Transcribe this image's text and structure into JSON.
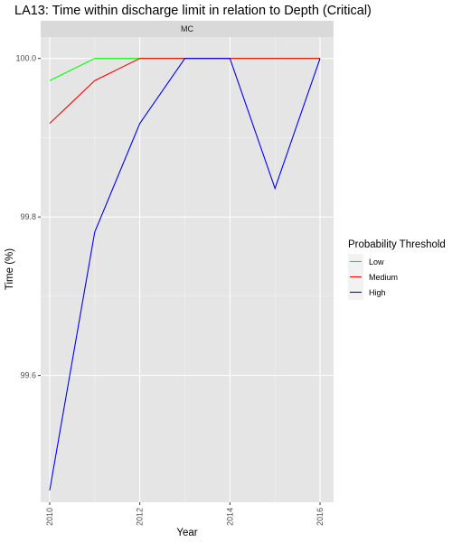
{
  "chart_data": {
    "type": "line",
    "title": "LA13: Time within discharge limit in relation to Depth (Critical)",
    "facet_label": "MC",
    "xlabel": "Year",
    "ylabel": "Time (%)",
    "x": [
      2010,
      2011,
      2012,
      2013,
      2014,
      2015,
      2016
    ],
    "x_ticks": [
      2010,
      2012,
      2014,
      2016
    ],
    "y_ticks": [
      99.6,
      99.8,
      100.0
    ],
    "y_tick_labels": [
      "99.6",
      "99.8",
      "100.0"
    ],
    "xlim": [
      2009.8,
      2016.3
    ],
    "ylim": [
      99.44,
      100.027
    ],
    "grid": true,
    "legend": {
      "title": "Probability Threshold",
      "position": "right"
    },
    "series": [
      {
        "name": "Low",
        "color": "#00ff00",
        "values": [
          99.972,
          100.0,
          100.0,
          100.0,
          100.0,
          100.0,
          100.0
        ]
      },
      {
        "name": "Medium",
        "color": "#ff0000",
        "values": [
          99.918,
          99.972,
          100.0,
          100.0,
          100.0,
          100.0,
          100.0
        ]
      },
      {
        "name": "High",
        "color": "#0000ff",
        "values": [
          99.455,
          99.781,
          99.918,
          100.0,
          100.0,
          99.836,
          100.0
        ]
      }
    ]
  }
}
